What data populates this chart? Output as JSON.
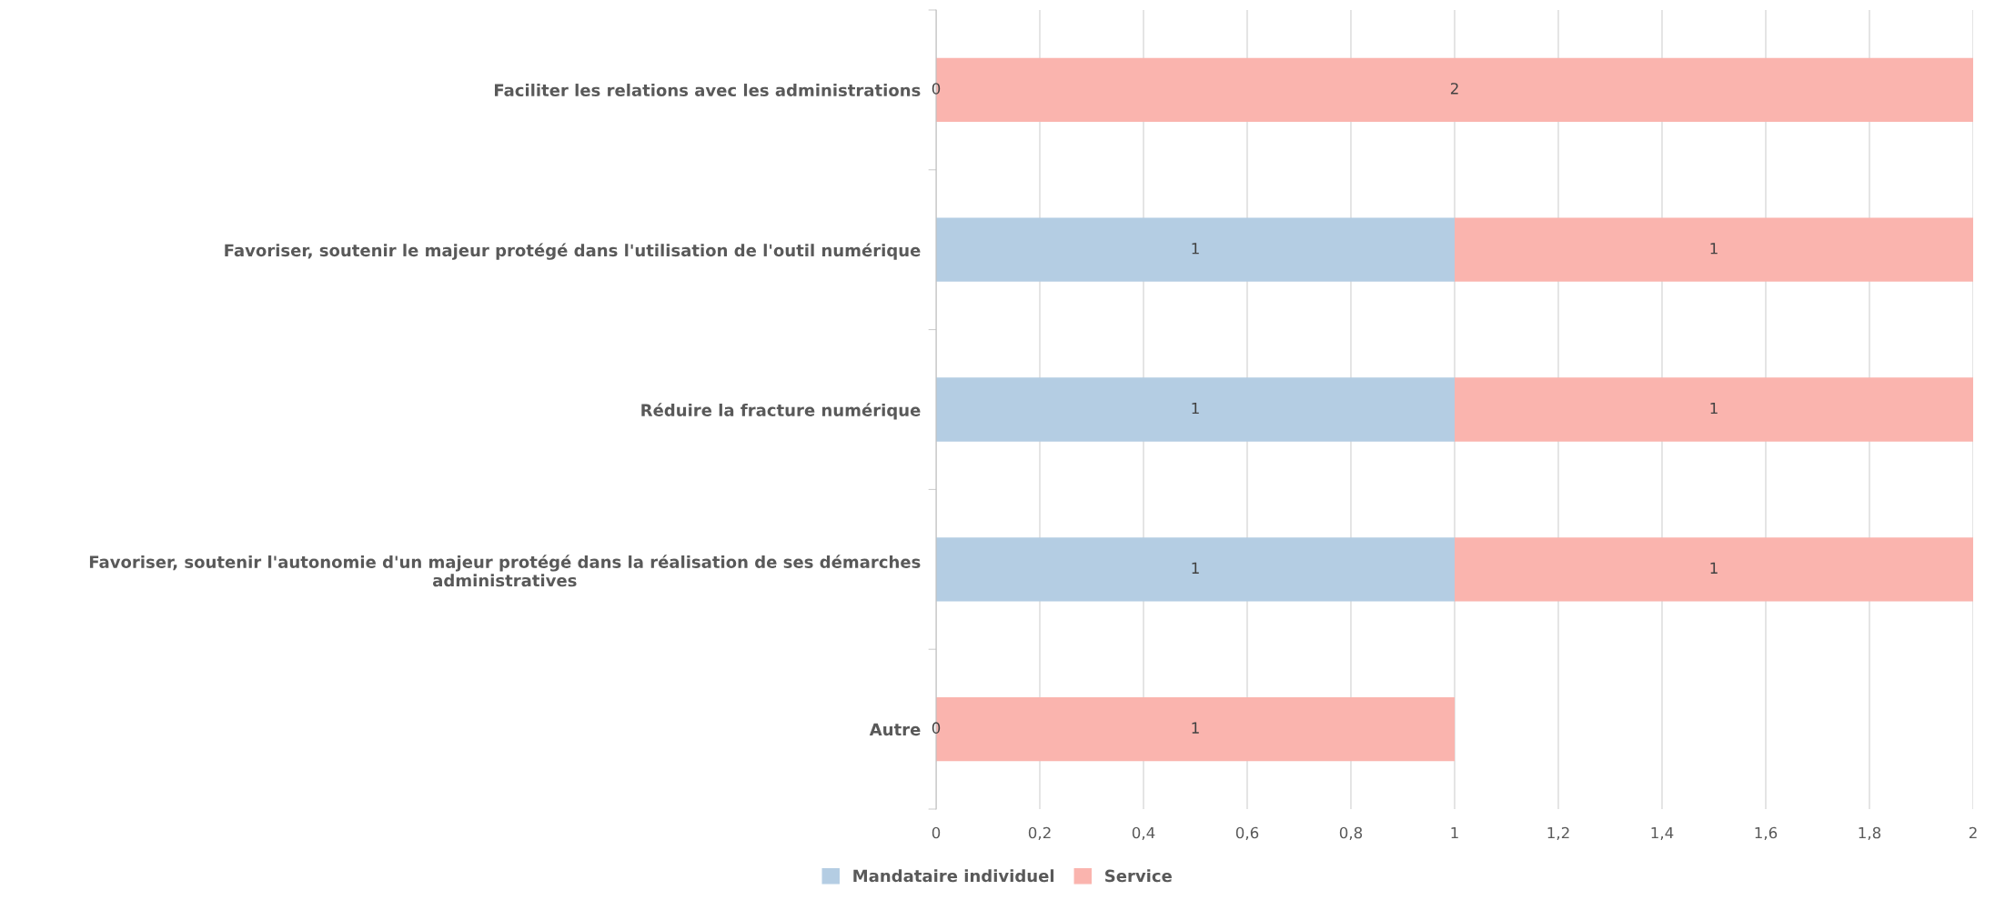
{
  "chart_data": {
    "type": "bar",
    "orientation": "horizontal",
    "stacked": true,
    "categories": [
      "Faciliter les relations avec les administrations",
      "Favoriser, soutenir le majeur protégé dans l'utilisation de l'outil numérique",
      "Réduire la fracture numérique",
      "Favoriser, soutenir l'autonomie d'un majeur protégé dans la réalisation de ses démarches\nadministratives",
      "Autre"
    ],
    "series": [
      {
        "name": "Mandataire individuel",
        "color": "#b4cde3",
        "values": [
          0,
          1,
          1,
          1,
          0
        ],
        "value_labels": [
          "0",
          "1",
          "1",
          "1",
          "0"
        ]
      },
      {
        "name": "Service",
        "color": "#fab4ae",
        "values": [
          2,
          1,
          1,
          1,
          1
        ],
        "value_labels": [
          "2",
          "1",
          "1",
          "1",
          "1"
        ]
      }
    ],
    "xlim": [
      0,
      2
    ],
    "xticks": [
      0,
      {
        "value": 0.2,
        "label": "0,2"
      },
      {
        "value": 0.4,
        "label": "0,4"
      },
      {
        "value": 0.6,
        "label": "0,6"
      },
      {
        "value": 0.8,
        "label": "0,8"
      },
      1,
      {
        "value": 1.2,
        "label": "1,2"
      },
      {
        "value": 1.4,
        "label": "1,4"
      },
      {
        "value": 1.6,
        "label": "1,6"
      },
      {
        "value": 1.8,
        "label": "1,8"
      },
      2
    ],
    "grid": "x",
    "legend": "bottom"
  }
}
